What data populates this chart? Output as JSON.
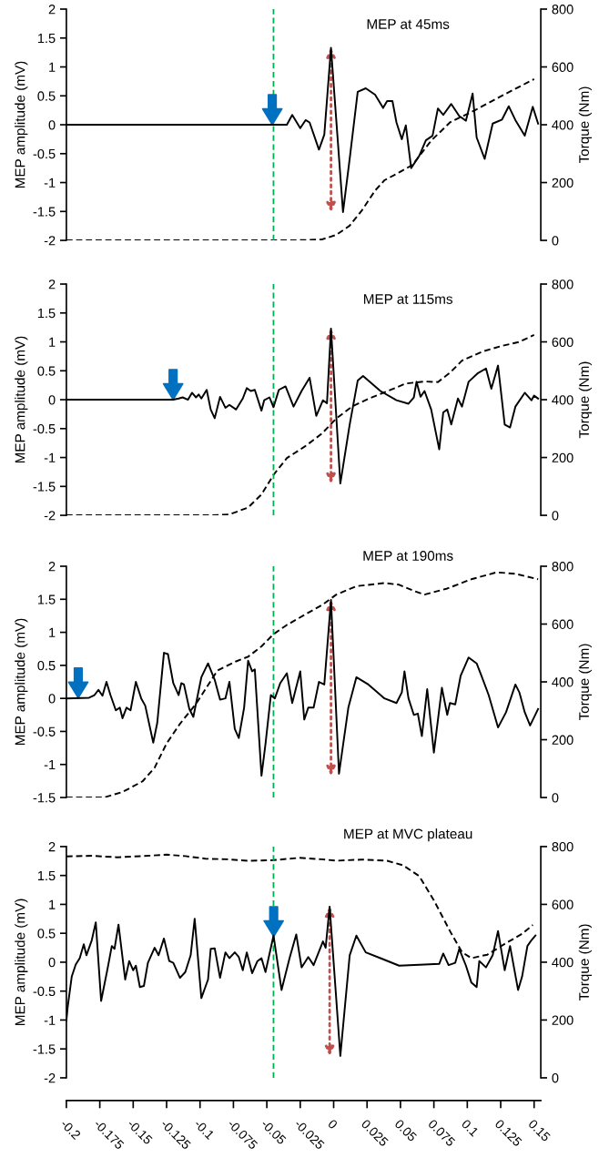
{
  "chart_data": [
    {
      "type": "line",
      "title": "MEP at 45ms",
      "ylabel": "MEP amplitude (mV)",
      "y2label": "Torque (Nm)",
      "xlim": [
        -0.2,
        0.155
      ],
      "ylim": [
        -2,
        2
      ],
      "yticks": [
        -2,
        -1.5,
        -1,
        -0.5,
        0,
        0.5,
        1,
        1.5,
        2
      ],
      "y2lim": [
        0,
        800
      ],
      "y2ticks": [
        0,
        200,
        400,
        600,
        800
      ],
      "tick_labels": "y",
      "ref_lines": [
        {
          "axis": "x",
          "value": -0.045,
          "color": "#00b050",
          "line_style": "dashed"
        }
      ],
      "series": [
        {
          "type": "line",
          "color": "#000000",
          "line_style": "solid",
          "x": [
            -0.2,
            -0.035,
            -0.031,
            -0.025,
            -0.021,
            -0.018,
            -0.011,
            -0.007,
            -0.002,
            0.007,
            0.012,
            0.018,
            0.024,
            0.031,
            0.037,
            0.04,
            0.044,
            0.047,
            0.051,
            0.054,
            0.058,
            0.064,
            0.069,
            0.074,
            0.078,
            0.082,
            0.088,
            0.094,
            0.099,
            0.104,
            0.107,
            0.113,
            0.119,
            0.126,
            0.131,
            0.136,
            0.143,
            0.149,
            0.153
          ],
          "values": [
            0,
            0,
            0.17,
            -0.06,
            0.08,
            0.04,
            -0.43,
            -0.17,
            1.33,
            -1.51,
            -0.59,
            0.57,
            0.63,
            0.52,
            0.29,
            0.41,
            0.41,
            0.04,
            -0.25,
            -0.01,
            -0.75,
            -0.54,
            -0.27,
            -0.19,
            0.28,
            0.17,
            0.36,
            0.15,
            0.07,
            0.54,
            -0.22,
            -0.59,
            0.02,
            0.09,
            0.32,
            0.08,
            -0.19,
            0.31,
            0.02
          ]
        },
        {
          "type": "line",
          "axis": "y2",
          "color": "#000000",
          "line_style": "dashed",
          "x": [
            -0.2,
            -0.03,
            -0.009,
            0.002,
            0.012,
            0.021,
            0.031,
            0.038,
            0.049,
            0.059,
            0.073,
            0.087,
            0.106,
            0.125,
            0.15
          ],
          "values": [
            0,
            0,
            3,
            19,
            51,
            103,
            172,
            208,
            235,
            261,
            345,
            408,
            451,
            498,
            558
          ]
        }
      ]
    },
    {
      "type": "line",
      "title": "MEP at 115ms",
      "ylabel": "MEP amplitude (mV)",
      "y2label": "Torque (Nm)",
      "xlim": [
        -0.2,
        0.155
      ],
      "ylim": [
        -2,
        2
      ],
      "yticks": [
        -2,
        -1.5,
        -1,
        -0.5,
        0,
        0.5,
        1,
        1.5,
        2
      ],
      "y2lim": [
        0,
        800
      ],
      "y2ticks": [
        0,
        200,
        400,
        600,
        800
      ],
      "tick_labels": "y",
      "ref_lines": [
        {
          "axis": "x",
          "value": -0.045,
          "color": "#00b050",
          "line_style": "dashed"
        }
      ],
      "series": [
        {
          "type": "line",
          "color": "#000000",
          "line_style": "solid",
          "x": [
            -0.2,
            -0.12,
            -0.116,
            -0.113,
            -0.109,
            -0.106,
            -0.103,
            -0.101,
            -0.099,
            -0.095,
            -0.092,
            -0.089,
            -0.085,
            -0.081,
            -0.078,
            -0.073,
            -0.068,
            -0.065,
            -0.062,
            -0.059,
            -0.054,
            -0.052,
            -0.048,
            -0.045,
            -0.041,
            -0.036,
            -0.03,
            -0.024,
            -0.018,
            -0.013,
            -0.008,
            -0.005,
            -0.002,
            0.005,
            0.012,
            0.018,
            0.022,
            0.035,
            0.047,
            0.056,
            0.06,
            0.062,
            0.065,
            0.068,
            0.073,
            0.079,
            0.082,
            0.085,
            0.088,
            0.093,
            0.096,
            0.101,
            0.108,
            0.114,
            0.118,
            0.123,
            0.128,
            0.132,
            0.136,
            0.143,
            0.148,
            0.15,
            0.153
          ],
          "values": [
            0,
            0,
            0.02,
            0.04,
            0,
            0.12,
            0.04,
            0.09,
            0.02,
            0.17,
            -0.17,
            -0.32,
            0.05,
            -0.14,
            -0.09,
            -0.17,
            0.02,
            0.2,
            0.15,
            0.17,
            -0.19,
            -0.01,
            0.04,
            -0.13,
            0.17,
            0.23,
            -0.12,
            0.15,
            0.38,
            -0.28,
            -0.01,
            -0.06,
            1.23,
            -1.45,
            -0.43,
            0.33,
            0.41,
            0.15,
            -0.01,
            -0.07,
            0.04,
            0.31,
            0.05,
            0.15,
            -0.17,
            -0.86,
            -0.22,
            -0.17,
            -0.43,
            0.02,
            -0.12,
            0.31,
            0.46,
            0.54,
            0.19,
            0.59,
            -0.43,
            -0.48,
            -0.12,
            0.12,
            -0.01,
            0.07,
            0.02
          ]
        },
        {
          "type": "line",
          "axis": "y2",
          "color": "#000000",
          "line_style": "dashed",
          "x": [
            -0.2,
            -0.092,
            -0.078,
            -0.064,
            -0.054,
            -0.045,
            -0.035,
            -0.021,
            -0.009,
            0.002,
            0.014,
            0.026,
            0.04,
            0.054,
            0.068,
            0.078,
            0.087,
            0.096,
            0.111,
            0.125,
            0.139,
            0.15
          ],
          "values": [
            0,
            0,
            3,
            27,
            72,
            140,
            198,
            240,
            282,
            335,
            377,
            403,
            429,
            456,
            463,
            461,
            493,
            535,
            566,
            585,
            600,
            624
          ]
        }
      ]
    },
    {
      "type": "line",
      "title": "MEP at 190ms",
      "ylabel": "MEP amplitude (mV)",
      "y2label": "Torque (Nm)",
      "xlim": [
        -0.2,
        0.155
      ],
      "ylim": [
        -1.5,
        2
      ],
      "yticks": [
        -1.5,
        -1,
        -0.5,
        0,
        0.5,
        1,
        1.5,
        2
      ],
      "y2lim": [
        0,
        800
      ],
      "y2ticks": [
        0,
        200,
        400,
        600,
        800
      ],
      "tick_labels": "y",
      "ref_lines": [
        {
          "axis": "x",
          "value": -0.045,
          "color": "#00b050",
          "line_style": "dashed"
        }
      ],
      "series": [
        {
          "type": "line",
          "color": "#000000",
          "line_style": "solid",
          "x": [
            -0.2,
            -0.183,
            -0.179,
            -0.176,
            -0.173,
            -0.17,
            -0.167,
            -0.163,
            -0.16,
            -0.158,
            -0.155,
            -0.152,
            -0.148,
            -0.144,
            -0.141,
            -0.135,
            -0.132,
            -0.127,
            -0.124,
            -0.12,
            -0.116,
            -0.114,
            -0.112,
            -0.108,
            -0.105,
            -0.099,
            -0.094,
            -0.089,
            -0.085,
            -0.081,
            -0.078,
            -0.074,
            -0.071,
            -0.067,
            -0.064,
            -0.061,
            -0.059,
            -0.054,
            -0.051,
            -0.047,
            -0.044,
            -0.04,
            -0.035,
            -0.031,
            -0.025,
            -0.022,
            -0.019,
            -0.015,
            -0.011,
            -0.007,
            -0.002,
            0.004,
            0.011,
            0.017,
            0.026,
            0.038,
            0.047,
            0.051,
            0.053,
            0.056,
            0.06,
            0.063,
            0.066,
            0.07,
            0.075,
            0.081,
            0.085,
            0.087,
            0.091,
            0.095,
            0.101,
            0.107,
            0.111,
            0.116,
            0.123,
            0.129,
            0.136,
            0.139,
            0.143,
            0.147,
            0.153
          ],
          "values": [
            0,
            0.01,
            0.05,
            0.13,
            0.04,
            0.25,
            0.05,
            -0.18,
            -0.14,
            -0.3,
            -0.14,
            -0.18,
            0.25,
            0,
            -0.11,
            -0.67,
            -0.37,
            0.69,
            0.67,
            0.23,
            0.05,
            0.23,
            0.21,
            -0.16,
            -0.28,
            0.32,
            0.53,
            0.28,
            -0.02,
            0,
            0.25,
            -0.46,
            -0.6,
            -0.14,
            0.57,
            0.41,
            0.44,
            -1.17,
            -0.69,
            0.05,
            0,
            0.23,
            0.38,
            -0.07,
            0.41,
            -0.32,
            -0.14,
            -0.14,
            0.25,
            0.21,
            1.49,
            -1.14,
            -0.14,
            0.32,
            0.21,
            0,
            -0.07,
            0.09,
            0.41,
            0,
            -0.25,
            -0.23,
            -0.57,
            0.14,
            -0.82,
            0.16,
            -0.25,
            -0.07,
            -0.09,
            0.34,
            0.62,
            0.53,
            0.32,
            0.05,
            -0.44,
            -0.21,
            0.21,
            0.09,
            -0.21,
            -0.41,
            -0.16
          ]
        },
        {
          "type": "line",
          "axis": "y2",
          "color": "#000000",
          "line_style": "dashed",
          "x": [
            -0.2,
            -0.172,
            -0.158,
            -0.143,
            -0.134,
            -0.125,
            -0.115,
            -0.103,
            -0.087,
            -0.073,
            -0.064,
            -0.054,
            -0.045,
            -0.035,
            -0.021,
            -0.009,
            0.002,
            0.017,
            0.038,
            0.049,
            0.061,
            0.068,
            0.085,
            0.103,
            0.122,
            0.136,
            0.153
          ],
          "values": [
            0,
            0,
            19,
            56,
            103,
            187,
            255,
            324,
            439,
            471,
            487,
            523,
            565,
            597,
            634,
            665,
            702,
            731,
            742,
            736,
            713,
            702,
            723,
            755,
            779,
            774,
            755
          ]
        }
      ]
    },
    {
      "type": "line",
      "title": "MEP at MVC plateau",
      "ylabel": "MEP amplitude (mV)",
      "y2label": "Torque (Nm)",
      "xlim": [
        -0.2,
        0.155
      ],
      "xticks": [
        -0.2,
        -0.175,
        -0.15,
        -0.125,
        -0.1,
        -0.075,
        -0.05,
        -0.025,
        0,
        0.025,
        0.05,
        0.075,
        0.1,
        0.125,
        0.15
      ],
      "ylim": [
        -2,
        2
      ],
      "yticks": [
        -2,
        -1.5,
        -1,
        -0.5,
        0,
        0.5,
        1,
        1.5,
        2
      ],
      "y2lim": [
        0,
        800
      ],
      "y2ticks": [
        0,
        200,
        400,
        600,
        800
      ],
      "ref_lines": [
        {
          "axis": "x",
          "value": -0.045,
          "color": "#00b050",
          "line_style": "dashed"
        }
      ],
      "series": [
        {
          "type": "line",
          "color": "#000000",
          "line_style": "solid",
          "x": [
            -0.2,
            -0.199,
            -0.196,
            -0.193,
            -0.19,
            -0.187,
            -0.185,
            -0.181,
            -0.178,
            -0.174,
            -0.169,
            -0.166,
            -0.164,
            -0.161,
            -0.156,
            -0.153,
            -0.15,
            -0.148,
            -0.145,
            -0.142,
            -0.139,
            -0.134,
            -0.131,
            -0.127,
            -0.123,
            -0.12,
            -0.115,
            -0.111,
            -0.107,
            -0.104,
            -0.099,
            -0.094,
            -0.092,
            -0.089,
            -0.085,
            -0.081,
            -0.078,
            -0.074,
            -0.071,
            -0.068,
            -0.065,
            -0.061,
            -0.057,
            -0.054,
            -0.051,
            -0.045,
            -0.039,
            -0.033,
            -0.028,
            -0.024,
            -0.019,
            -0.015,
            -0.008,
            -0.006,
            -0.003,
            0.005,
            0.012,
            0.017,
            0.024,
            0.035,
            0.049,
            0.068,
            0.079,
            0.082,
            0.086,
            0.091,
            0.094,
            0.099,
            0.103,
            0.107,
            0.109,
            0.114,
            0.119,
            0.123,
            0.128,
            0.132,
            0.138,
            0.141,
            0.145,
            0.148,
            0.151
          ],
          "values": [
            -1.01,
            -0.77,
            -0.25,
            -0.04,
            0.07,
            0.31,
            0.12,
            0.38,
            0.69,
            -0.67,
            -0.09,
            0.28,
            0.23,
            0.65,
            -0.3,
            0.02,
            -0.14,
            -0.06,
            -0.43,
            -0.41,
            -0.01,
            0.25,
            0.12,
            0.41,
            0.02,
            -0.01,
            -0.27,
            -0.17,
            0.12,
            0.75,
            -0.62,
            -0.3,
            0.23,
            0.24,
            -0.27,
            0.17,
            0.07,
            0.17,
            0.09,
            -0.14,
            0.17,
            -0.19,
            0.02,
            0.07,
            -0.17,
            0.46,
            -0.48,
            0.07,
            0.48,
            -0.09,
            0.09,
            -0.05,
            0.36,
            0.25,
            0.96,
            -1.62,
            0.12,
            0.46,
            0.17,
            0.07,
            -0.06,
            -0.04,
            -0.03,
            0.15,
            -0.05,
            -0.01,
            0.23,
            -0.06,
            -0.35,
            -0.43,
            0.02,
            -0.09,
            0.12,
            0.54,
            -0.14,
            0.28,
            -0.48,
            -0.25,
            0.28,
            0.38,
            0.46
          ]
        },
        {
          "type": "line",
          "axis": "y2",
          "color": "#000000",
          "line_style": "dashed",
          "x": [
            -0.2,
            -0.181,
            -0.162,
            -0.143,
            -0.125,
            -0.111,
            -0.096,
            -0.08,
            -0.064,
            -0.045,
            -0.026,
            -0.009,
            0.002,
            0.021,
            0.04,
            0.052,
            0.064,
            0.075,
            0.087,
            0.096,
            0.103,
            0.115,
            0.129,
            0.141,
            0.149
          ],
          "values": [
            766,
            768,
            763,
            767,
            772,
            767,
            758,
            756,
            751,
            753,
            761,
            756,
            751,
            755,
            751,
            735,
            698,
            614,
            508,
            435,
            414,
            426,
            466,
            498,
            529
          ]
        }
      ]
    }
  ]
}
